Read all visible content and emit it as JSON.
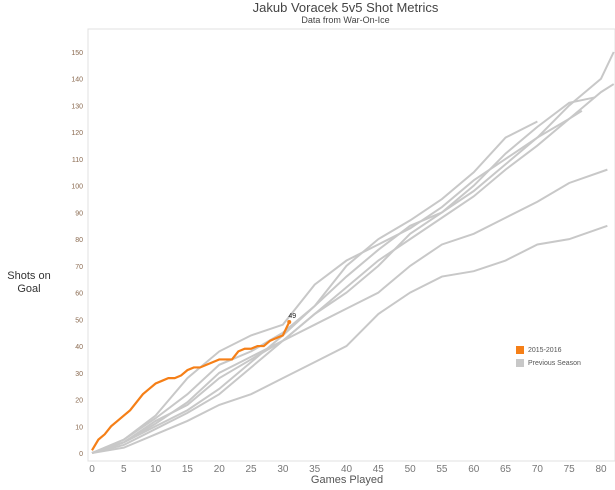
{
  "chart_data": {
    "type": "line",
    "title": "Jakub Voracek 5v5 Shot Metrics",
    "subtitle": "Data from War-On-Ice",
    "xlabel": "Games Played",
    "ylabel": "Shots on Goal",
    "xlim": [
      0,
      82
    ],
    "ylim": [
      -3,
      158
    ],
    "xticks": [
      0,
      5,
      10,
      15,
      20,
      25,
      30,
      35,
      40,
      45,
      50,
      55,
      60,
      65,
      70,
      75,
      80
    ],
    "yticks": [
      0,
      10,
      20,
      30,
      40,
      50,
      60,
      70,
      80,
      90,
      100,
      110,
      120,
      130,
      140,
      150
    ],
    "grid": false,
    "legend_position": "right",
    "legend": [
      {
        "label": "2015-2016",
        "color": "#f57f17"
      },
      {
        "label": "Previous Season",
        "color": "#c8c8c8"
      }
    ],
    "current": {
      "name": "2015-2016",
      "color": "#f57f17",
      "end_label": "49",
      "points": [
        [
          0,
          1
        ],
        [
          1,
          5
        ],
        [
          2,
          7
        ],
        [
          3,
          10
        ],
        [
          4,
          12
        ],
        [
          5,
          14
        ],
        [
          6,
          16
        ],
        [
          7,
          19
        ],
        [
          8,
          22
        ],
        [
          9,
          24
        ],
        [
          10,
          26
        ],
        [
          11,
          27
        ],
        [
          12,
          28
        ],
        [
          13,
          28
        ],
        [
          14,
          29
        ],
        [
          15,
          31
        ],
        [
          16,
          32
        ],
        [
          17,
          32
        ],
        [
          18,
          33
        ],
        [
          19,
          34
        ],
        [
          20,
          35
        ],
        [
          21,
          35
        ],
        [
          22,
          35
        ],
        [
          23,
          38
        ],
        [
          24,
          39
        ],
        [
          25,
          39
        ],
        [
          26,
          40
        ],
        [
          27,
          40
        ],
        [
          28,
          42
        ],
        [
          29,
          43
        ],
        [
          30,
          44
        ],
        [
          31,
          49
        ]
      ]
    },
    "previous": {
      "name": "Previous Season",
      "color": "#c8c8c8",
      "seasons": [
        {
          "x": [
            0,
            5,
            10,
            15,
            20,
            25,
            30,
            35,
            40,
            45,
            50,
            55,
            60,
            65,
            70,
            75,
            80,
            82
          ],
          "y": [
            0,
            5,
            14,
            28,
            38,
            44,
            48,
            63,
            72,
            78,
            84,
            92,
            102,
            110,
            118,
            130,
            140,
            150
          ]
        },
        {
          "x": [
            0,
            5,
            10,
            15,
            20,
            25,
            30,
            35,
            40,
            45,
            50,
            55,
            60,
            65,
            70,
            75,
            80,
            82
          ],
          "y": [
            0,
            4,
            12,
            18,
            28,
            35,
            42,
            52,
            60,
            70,
            82,
            90,
            98,
            108,
            118,
            125,
            135,
            138
          ]
        },
        {
          "x": [
            0,
            5,
            10,
            15,
            20,
            25,
            30,
            35,
            40,
            45,
            50,
            55,
            60,
            65,
            70,
            75,
            79
          ],
          "y": [
            0,
            4,
            10,
            16,
            24,
            34,
            44,
            55,
            66,
            76,
            85,
            90,
            100,
            112,
            122,
            131,
            133
          ]
        },
        {
          "x": [
            0,
            5,
            10,
            15,
            20,
            25,
            30,
            35,
            40,
            45,
            50,
            55,
            60,
            65,
            70,
            75,
            77
          ],
          "y": [
            0,
            3,
            9,
            15,
            22,
            32,
            42,
            52,
            62,
            72,
            80,
            88,
            96,
            106,
            115,
            125,
            128
          ]
        },
        {
          "x": [
            0,
            5,
            10,
            15,
            20,
            25,
            30,
            35,
            40,
            45,
            50,
            55,
            60,
            65,
            70,
            75,
            81
          ],
          "y": [
            0,
            4,
            11,
            19,
            30,
            36,
            42,
            48,
            54,
            60,
            70,
            78,
            82,
            88,
            94,
            101,
            106
          ]
        },
        {
          "x": [
            0,
            5,
            10,
            15,
            20,
            25,
            30,
            35,
            40,
            45,
            50,
            55,
            60,
            65,
            70,
            75,
            81
          ],
          "y": [
            0,
            2,
            7,
            12,
            18,
            22,
            28,
            34,
            40,
            52,
            60,
            66,
            68,
            72,
            78,
            80,
            85
          ]
        },
        {
          "x": [
            0,
            5,
            10,
            15,
            20,
            25,
            30,
            35,
            40,
            45,
            50,
            55,
            60,
            65,
            70
          ],
          "y": [
            0,
            5,
            13,
            22,
            33,
            38,
            45,
            55,
            70,
            80,
            87,
            95,
            105,
            118,
            124
          ]
        }
      ]
    }
  }
}
